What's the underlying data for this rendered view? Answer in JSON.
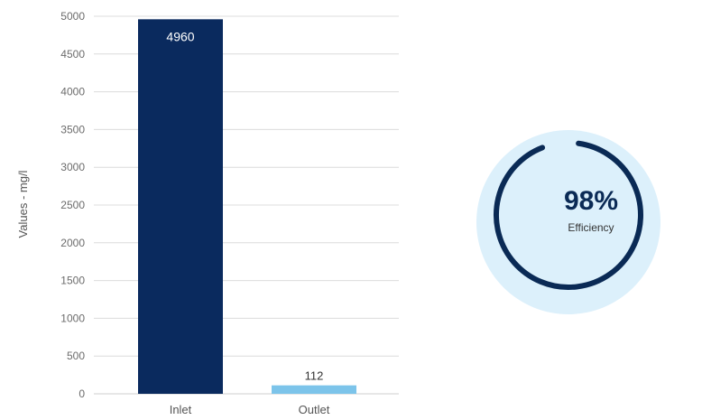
{
  "chart_data": [
    {
      "type": "bar",
      "categories": [
        "Inlet",
        "Outlet"
      ],
      "values": [
        4960,
        112
      ],
      "data_labels": [
        "4960",
        "112"
      ],
      "ylabel": "Values - mg/l",
      "ylim": [
        0,
        5000
      ],
      "yticks": [
        0,
        500,
        1000,
        1500,
        2000,
        2500,
        3000,
        3500,
        4000,
        4500,
        5000
      ],
      "grid": true,
      "colors": [
        "#0a2a5e",
        "#7cc4ea"
      ]
    },
    {
      "type": "gauge",
      "value_percent": 98,
      "value_label": "98%",
      "label": "Efficiency",
      "track_color": "#dcf0fb",
      "arc_color": "#0a2a55"
    }
  ]
}
